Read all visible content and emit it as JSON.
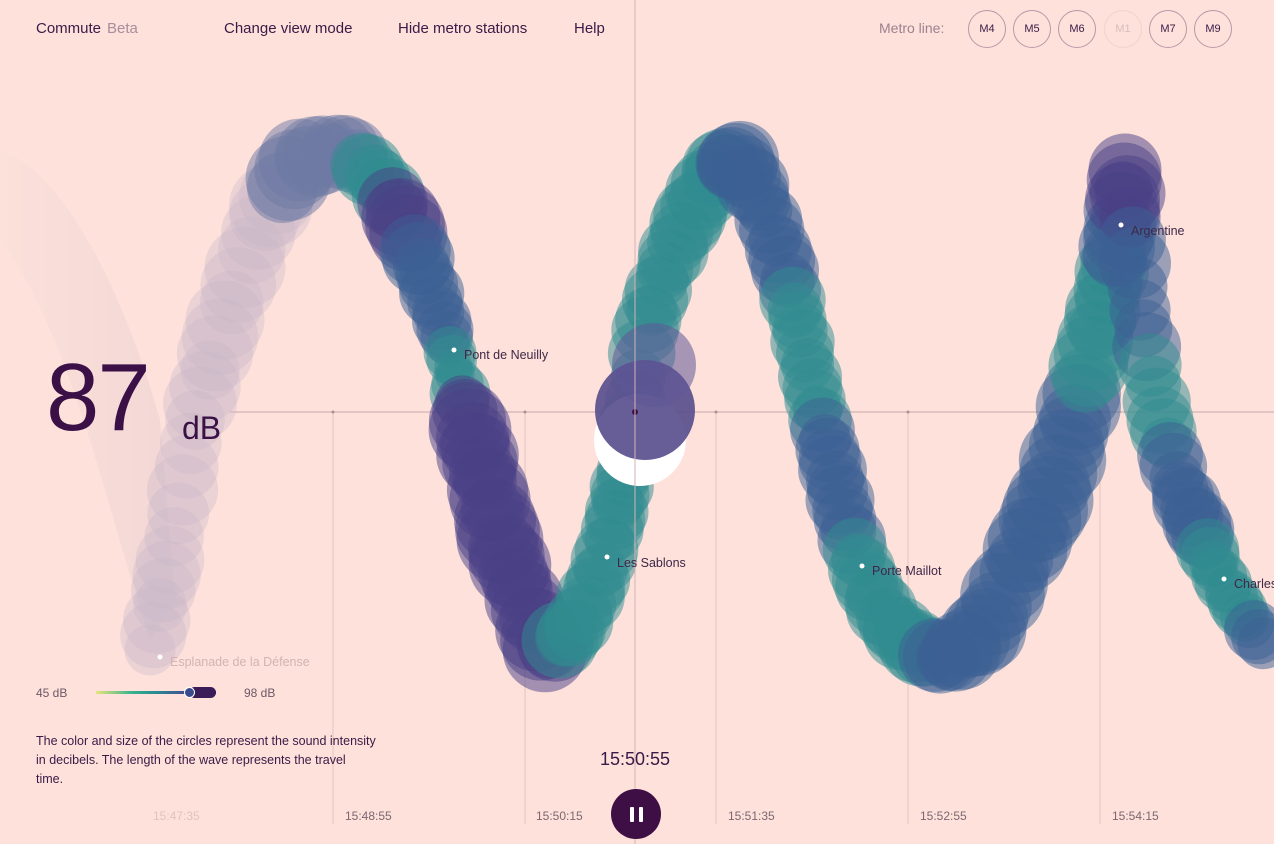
{
  "app": {
    "title": "Commute",
    "badge": "Beta"
  },
  "nav": {
    "change_view": "Change view mode",
    "hide_stations": "Hide metro stations",
    "help": "Help"
  },
  "metro": {
    "label": "Metro line:",
    "lines": [
      "M4",
      "M5",
      "M6",
      "M1",
      "M7",
      "M9"
    ],
    "selected": "M1"
  },
  "reading": {
    "value": "87",
    "unit": "dB"
  },
  "legend": {
    "min": "45 dB",
    "max": "98 dB",
    "current_fraction": 0.79,
    "colors": [
      "#e8e47a",
      "#36b38c",
      "#2a8a92",
      "#3b5a94",
      "#3a1d58"
    ]
  },
  "description": "The color and size of the circles represent the sound intensity in decibels. The length of the wave represents the travel time.",
  "player": {
    "current_time": "15:50:55",
    "state": "playing",
    "icon": "pause-icon"
  },
  "timeline": {
    "ticks": [
      "15:47:35",
      "15:48:55",
      "15:50:15",
      "15:51:35",
      "15:52:55",
      "15:54:15"
    ]
  },
  "stations": [
    {
      "name": "Esplanade de la Défense"
    },
    {
      "name": "Pont de Neuilly"
    },
    {
      "name": "Les Sablons"
    },
    {
      "name": "Porte Maillot"
    },
    {
      "name": "Argentine"
    },
    {
      "name": "Charles de Gaulle – Étoile"
    }
  ],
  "colors": {
    "background": "#fde1da",
    "text": "#3a1a47",
    "accent": "#3d0f45",
    "played": "#d9c3cc"
  }
}
